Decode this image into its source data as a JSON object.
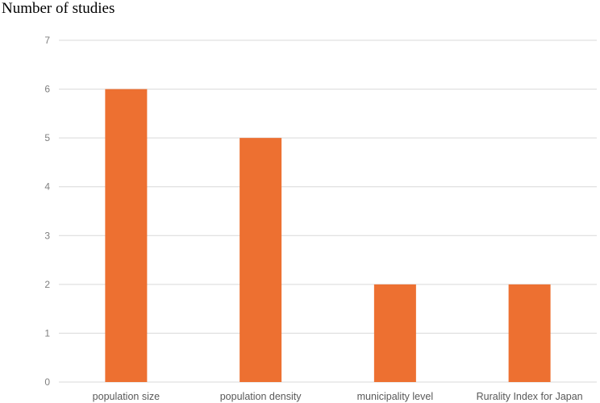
{
  "chart_data": {
    "type": "bar",
    "ylabel": "Number of studies",
    "categories": [
      "population size",
      "population density",
      "municipality level",
      "Rurality Index for Japan"
    ],
    "values": [
      6,
      5,
      2,
      2
    ],
    "ylim": [
      0,
      7
    ],
    "yticks": [
      0,
      1,
      2,
      3,
      4,
      5,
      6,
      7
    ],
    "grid": true,
    "bar_color": "#ED7031",
    "grid_color": "#D9D9D9"
  }
}
